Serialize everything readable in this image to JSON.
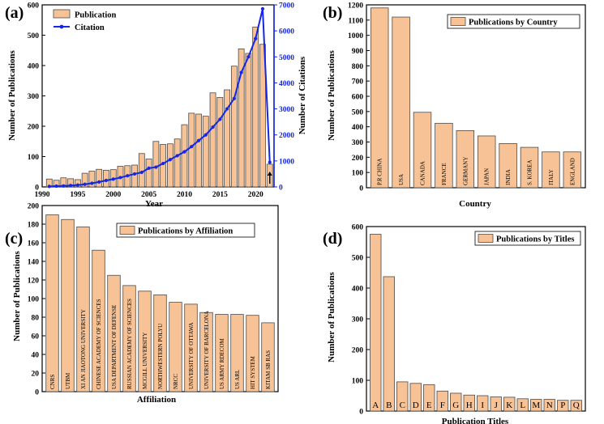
{
  "colors": {
    "bar_fill": "#F7C396",
    "bar_stroke": "#4a4a4a",
    "citation_line": "#1426E6",
    "axis": "#000000"
  },
  "chart_data": [
    {
      "type": "bar+line",
      "panel_label": "(a)",
      "x": [
        1991,
        1992,
        1993,
        1994,
        1995,
        1996,
        1997,
        1998,
        1999,
        2000,
        2001,
        2002,
        2003,
        2004,
        2005,
        2006,
        2007,
        2008,
        2009,
        2010,
        2011,
        2012,
        2013,
        2014,
        2015,
        2016,
        2017,
        2018,
        2019,
        2020,
        2021,
        2022
      ],
      "series": [
        {
          "name": "Publication",
          "axis": "left",
          "kind": "bar",
          "values": [
            26,
            22,
            30,
            27,
            24,
            45,
            52,
            58,
            55,
            57,
            68,
            70,
            72,
            110,
            92,
            150,
            140,
            142,
            158,
            205,
            243,
            240,
            233,
            310,
            295,
            320,
            398,
            455,
            440,
            527,
            470,
            75
          ]
        },
        {
          "name": "Citation",
          "axis": "right",
          "kind": "line",
          "values": [
            20,
            30,
            40,
            55,
            70,
            100,
            140,
            190,
            250,
            300,
            360,
            430,
            500,
            560,
            720,
            760,
            900,
            1050,
            1200,
            1350,
            1550,
            1780,
            2000,
            2300,
            2600,
            3000,
            3400,
            4400,
            5000,
            5700,
            6850,
            950
          ]
        }
      ],
      "xlabel": "Year",
      "ylabel": "Number of Publications",
      "y2label": "Number of Citations",
      "xlim": [
        1990,
        2022.6
      ],
      "ylim": [
        0,
        600
      ],
      "y2lim": [
        0,
        7000
      ],
      "xticks": [
        "1990",
        "1995",
        "2000",
        "2005",
        "2010",
        "2015",
        "2020"
      ],
      "yticks": [
        "0",
        "100",
        "200",
        "300",
        "400",
        "500",
        "600"
      ],
      "y2ticks": [
        "0",
        "1000",
        "2000",
        "3000",
        "4000",
        "5000",
        "6000",
        "7000"
      ],
      "legend": [
        "Publication",
        "Citation"
      ],
      "legend_position": "top-left"
    },
    {
      "type": "bar",
      "panel_label": "(b)",
      "categories": [
        "P.R CHINA",
        "USA",
        "CANADA",
        "FRANCE",
        "GERMANY",
        "JAPAN",
        "INDIA",
        "S. KOREA",
        "ITALY",
        "ENGLAND"
      ],
      "values": [
        1180,
        1120,
        495,
        423,
        375,
        340,
        290,
        265,
        235,
        235
      ],
      "xlabel": "Country",
      "ylabel": "Number of Publications",
      "ylim": [
        0,
        1200
      ],
      "yticks": [
        "0",
        "100",
        "200",
        "300",
        "400",
        "500",
        "600",
        "700",
        "800",
        "900",
        "1000",
        "1100",
        "1200"
      ],
      "legend": [
        "Publications by Country"
      ],
      "legend_position": "top-right"
    },
    {
      "type": "bar",
      "panel_label": "(c)",
      "categories": [
        "CNRS",
        "UTBM",
        "XI AN JIAOTONG UNIVERSITY",
        "CHINESE ACADEMY OF SCIENCES",
        "USA DEPARTMENT OF DEFENSE",
        "RUSSIAN ACADEMY OF SCIENCES",
        "MCGILL UNIVERSITY",
        "NORTHWESTERN POLYU",
        "NRCC",
        "UNIVERSITY OF OTTAWA",
        "UNIVERSITY OF BARCELONA",
        "US ARMY RDECOM",
        "US ARL",
        "HIT SYSTEM",
        "KITAM SB RAS"
      ],
      "values": [
        190,
        185,
        177,
        152,
        125,
        114,
        108,
        104,
        96,
        94,
        85,
        83,
        83,
        82,
        74
      ],
      "xlabel": "Affiliation",
      "ylabel": "Number of Publications",
      "ylim": [
        0,
        200
      ],
      "yticks": [
        "0",
        "20",
        "40",
        "60",
        "80",
        "100",
        "120",
        "140",
        "160",
        "180",
        "200"
      ],
      "legend": [
        "Publications by Affiliation"
      ],
      "legend_position": "top-right"
    },
    {
      "type": "bar",
      "panel_label": "(d)",
      "categories": [
        "A",
        "B",
        "C",
        "D",
        "E",
        "F",
        "G",
        "H",
        "I",
        "J",
        "K",
        "L",
        "M",
        "N",
        "P",
        "Q"
      ],
      "values": [
        575,
        437,
        95,
        90,
        86,
        65,
        58,
        52,
        50,
        46,
        45,
        40,
        38,
        38,
        35,
        35
      ],
      "xlabel": "Publication Titles",
      "ylabel": "Number of Publications",
      "ylim": [
        0,
        600
      ],
      "yticks": [
        "0",
        "100",
        "200",
        "300",
        "400",
        "500",
        "600"
      ],
      "legend": [
        "Publications by Titles"
      ],
      "legend_position": "top-right"
    }
  ]
}
